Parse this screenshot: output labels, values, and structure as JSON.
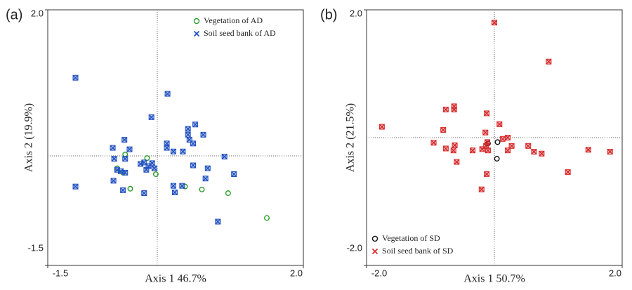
{
  "chart_data": [
    {
      "type": "scatter",
      "panel_label": "(a)",
      "xlabel": "Axis 1 46.7%",
      "ylabel": "Axis 2 (19.9%)",
      "xlim": [
        -1.5,
        2.0
      ],
      "ylim": [
        -1.5,
        2.0
      ],
      "xticks": [
        -1.5,
        {
          "value": 2,
          "label": "2.0"
        }
      ],
      "yticks": [
        -1.5,
        {
          "value": 2,
          "label": "2.0"
        }
      ],
      "legend": "top-right",
      "series": [
        {
          "name": "Vegetation of AD",
          "color": "#2e9e2e",
          "marker": "circle",
          "x": [
            -0.44,
            -0.55,
            -0.14,
            -0.02,
            -0.37,
            0.38,
            0.61,
            0.97,
            1.5,
            -0.47
          ],
          "y": [
            0.02,
            -0.17,
            -0.03,
            -0.25,
            -0.45,
            -0.42,
            -0.46,
            -0.51,
            -0.85,
            -0.23
          ]
        },
        {
          "name": "Soil seed bank of AD",
          "color": "#1f4fbf",
          "marker": "cross",
          "x": [
            -1.12,
            -1.12,
            0.14,
            -0.08,
            0.52,
            0.42,
            0.63,
            0.42,
            0.44,
            0.13,
            0.13,
            0.22,
            0.35,
            0.49,
            -0.61,
            -0.45,
            -0.38,
            -0.59,
            -0.44,
            -0.18,
            -0.12,
            -0.07,
            -0.04,
            -0.15,
            -0.23,
            -0.5,
            -0.55,
            -0.44,
            -0.6,
            -0.47,
            -0.18,
            0.24,
            0.34,
            0.22,
            0.49,
            0.69,
            0.66,
            0.92,
            1.05,
            0.83
          ],
          "y": [
            1.07,
            -0.42,
            0.85,
            0.53,
            0.43,
            0.37,
            0.29,
            0.29,
            0.22,
            0.17,
            0.11,
            0.06,
            0.06,
            0.17,
            0.11,
            0.22,
            0.09,
            -0.04,
            -0.04,
            -0.09,
            -0.14,
            -0.1,
            -0.17,
            -0.19,
            -0.11,
            -0.21,
            -0.19,
            -0.23,
            -0.34,
            -0.47,
            -0.51,
            -0.5,
            -0.41,
            -0.41,
            -0.13,
            -0.17,
            -0.31,
            -0.01,
            -0.25,
            -0.9
          ]
        }
      ]
    },
    {
      "type": "scatter",
      "panel_label": "(b)",
      "xlabel": "Axis 1 50.7%",
      "ylabel": "Axis 2 (21.5%)",
      "xlim": [
        -2.0,
        2.0
      ],
      "ylim": [
        -2.0,
        2.0
      ],
      "xticks": [
        {
          "value": -2,
          "label": "-2.0"
        },
        {
          "value": 2,
          "label": "2.0"
        }
      ],
      "yticks": [
        {
          "value": -2,
          "label": "-2.0"
        },
        {
          "value": 2,
          "label": "2.0"
        }
      ],
      "legend": "bottom-left",
      "series": [
        {
          "name": "Vegetation of SD",
          "color": "#111111",
          "marker": "circle",
          "x": [
            0.05,
            0.04,
            -0.1
          ],
          "y": [
            -0.07,
            -0.33,
            -0.09
          ]
        },
        {
          "name": "Soil seed bank of SD",
          "color": "#d62728",
          "marker": "cross",
          "x": [
            0,
            0.85,
            -1.76,
            -0.76,
            -0.63,
            -0.63,
            -0.8,
            -0.12,
            0.08,
            -0.14,
            -0.11,
            -0.13,
            -0.19,
            -0.1,
            -0.34,
            -0.62,
            -0.64,
            -0.76,
            -0.95,
            -0.59,
            0.13,
            0.21,
            0.21,
            0.27,
            0.53,
            0.62,
            0.74,
            1.47,
            1.81,
            1.15,
            -0.12,
            -0.2
          ],
          "y": [
            1.8,
            1.19,
            0.17,
            0.44,
            0.49,
            0.44,
            0.12,
            0.38,
            0.21,
            0.08,
            -0.07,
            -0.13,
            -0.18,
            -0.2,
            -0.2,
            -0.12,
            -0.2,
            -0.17,
            -0.08,
            -0.38,
            -0.02,
            0,
            -0.2,
            -0.13,
            -0.13,
            -0.22,
            -0.25,
            -0.19,
            -0.22,
            -0.54,
            -0.57,
            -0.81
          ]
        }
      ]
    }
  ]
}
